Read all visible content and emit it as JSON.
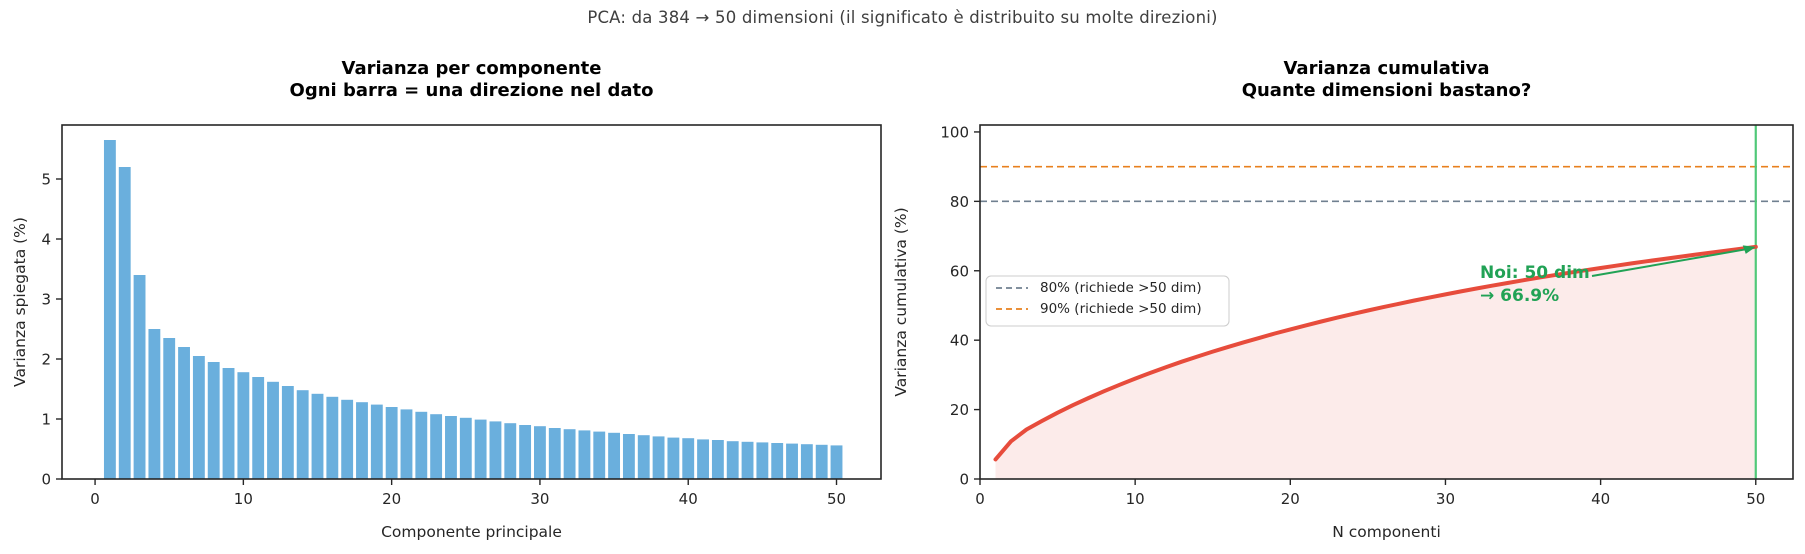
{
  "suptitle": "PCA: da 384 → 50 dimensioni  (il significato è distribuito su molte direzioni)",
  "colors": {
    "bar_blue": "#6aafdd",
    "line_red": "#e74c3c",
    "fill_pink": "rgba(231,76,60,0.11)",
    "gray_dashed": "#708090",
    "orange_dashed": "#e8801e",
    "green_vline": "#50c878",
    "green_annotation": "#21a255",
    "axis": "#262626",
    "suptitle_text": "#3f3f3f",
    "legend_border": "#cccccc"
  },
  "chart_data": [
    {
      "id": "scree",
      "type": "bar",
      "title_lines": [
        "Varianza per componente",
        "Ogni barra = una direzione nel dato"
      ],
      "xlabel": "Componente principale",
      "ylabel": "Varianza spiegata (%)",
      "xticks": [
        0,
        10,
        20,
        30,
        40,
        50
      ],
      "yticks": [
        0,
        1,
        2,
        3,
        4,
        5
      ],
      "xlim": [
        -2.23,
        53.0
      ],
      "ylim": [
        0,
        5.9
      ],
      "grid": false,
      "x": [
        1,
        2,
        3,
        4,
        5,
        6,
        7,
        8,
        9,
        10,
        11,
        12,
        13,
        14,
        15,
        16,
        17,
        18,
        19,
        20,
        21,
        22,
        23,
        24,
        25,
        26,
        27,
        28,
        29,
        30,
        31,
        32,
        33,
        34,
        35,
        36,
        37,
        38,
        39,
        40,
        41,
        42,
        43,
        44,
        45,
        46,
        47,
        48,
        49,
        50
      ],
      "values": [
        5.65,
        5.2,
        3.4,
        2.5,
        2.35,
        2.2,
        2.05,
        1.95,
        1.85,
        1.78,
        1.7,
        1.62,
        1.55,
        1.48,
        1.42,
        1.37,
        1.32,
        1.28,
        1.24,
        1.2,
        1.16,
        1.12,
        1.08,
        1.05,
        1.02,
        0.99,
        0.96,
        0.93,
        0.9,
        0.88,
        0.85,
        0.83,
        0.81,
        0.79,
        0.77,
        0.75,
        0.73,
        0.71,
        0.69,
        0.68,
        0.66,
        0.65,
        0.63,
        0.62,
        0.61,
        0.6,
        0.59,
        0.58,
        0.57,
        0.56
      ]
    },
    {
      "id": "cumulative",
      "type": "area",
      "title_lines": [
        "Varianza cumulativa",
        "Quante dimensioni bastano?"
      ],
      "xlabel": "N componenti",
      "ylabel": "Varianza cumulativa (%)",
      "xticks": [
        0,
        10,
        20,
        30,
        40,
        50
      ],
      "yticks": [
        0,
        20,
        40,
        60,
        80,
        100
      ],
      "xlim": [
        0,
        52.4
      ],
      "ylim": [
        0,
        102
      ],
      "grid": false,
      "x": [
        1,
        2,
        3,
        4,
        5,
        6,
        7,
        8,
        9,
        10,
        11,
        12,
        13,
        14,
        15,
        16,
        17,
        18,
        19,
        20,
        21,
        22,
        23,
        24,
        25,
        26,
        27,
        28,
        29,
        30,
        31,
        32,
        33,
        34,
        35,
        36,
        37,
        38,
        39,
        40,
        41,
        42,
        43,
        44,
        45,
        46,
        47,
        48,
        49,
        50
      ],
      "values": [
        5.65,
        10.85,
        14.25,
        16.75,
        19.1,
        21.3,
        23.35,
        25.3,
        27.15,
        28.93,
        30.63,
        32.25,
        33.8,
        35.28,
        36.7,
        38.07,
        39.39,
        40.67,
        41.91,
        43.11,
        44.27,
        45.39,
        46.47,
        47.52,
        48.54,
        49.53,
        50.49,
        51.42,
        52.32,
        53.2,
        54.05,
        54.88,
        55.69,
        56.48,
        57.25,
        58.0,
        58.73,
        59.44,
        60.13,
        60.81,
        61.47,
        62.12,
        62.75,
        63.37,
        63.98,
        64.58,
        65.17,
        65.75,
        66.32,
        66.9
      ],
      "legend": {
        "position": "center-left",
        "entries": [
          {
            "label": "80% (richiede >50 dim)",
            "style": "dashed",
            "color_key": "gray_dashed"
          },
          {
            "label": "90% (richiede >50 dim)",
            "style": "dashed",
            "color_key": "orange_dashed"
          }
        ]
      },
      "hlines": [
        {
          "y": 80,
          "color_key": "gray_dashed"
        },
        {
          "y": 90,
          "color_key": "orange_dashed"
        }
      ],
      "vline": {
        "x": 50,
        "color_key": "green_vline"
      },
      "annotation": {
        "lines": [
          "Noi: 50 dim",
          "→ 66.9%"
        ],
        "target_x": 50,
        "target_y": 66.9,
        "color_key": "green_annotation"
      }
    }
  ]
}
